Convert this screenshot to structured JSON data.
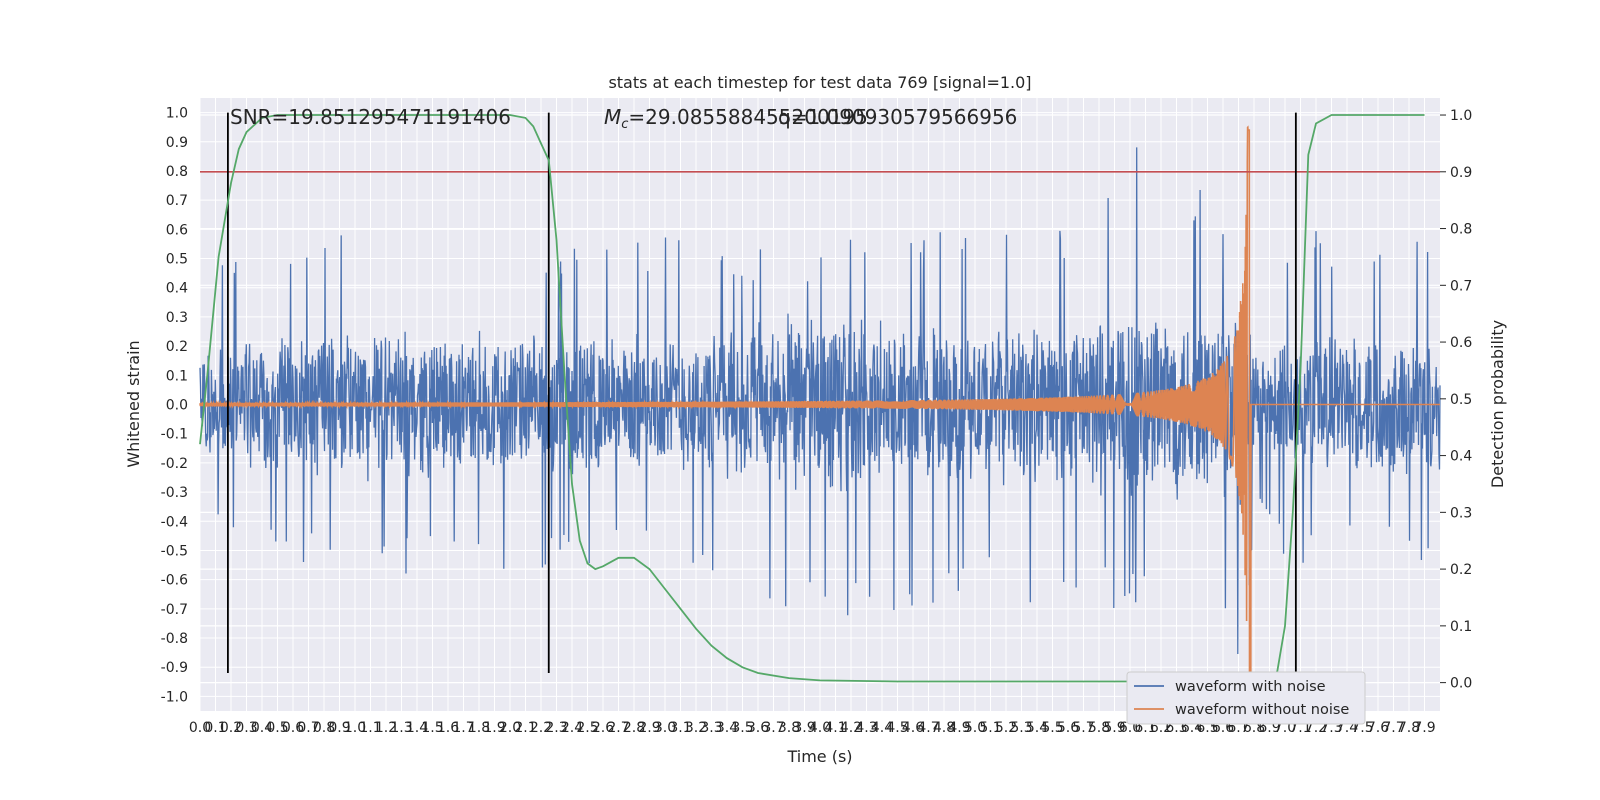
{
  "chart_data": {
    "type": "line",
    "title": "stats at each timestep for test data 769 [signal=1.0]",
    "xlabel": "Time (s)",
    "ylabel": "Whitened strain",
    "y2label": "Detection probability",
    "xlim": [
      0.0,
      8.0
    ],
    "ylim": [
      -1.05,
      1.05
    ],
    "y2lim": [
      -0.05,
      1.03
    ],
    "grid": true,
    "legend_position": "bottom-right",
    "x_ticks": [
      "0.0",
      "0.1",
      "0.2",
      "0.3",
      "0.4",
      "0.5",
      "0.6",
      "0.7",
      "0.8",
      "0.9",
      "1.0",
      "1.1",
      "1.2",
      "1.3",
      "1.4",
      "1.5",
      "1.6",
      "1.7",
      "1.8",
      "1.9",
      "2.0",
      "2.1",
      "2.2",
      "2.3",
      "2.4",
      "2.5",
      "2.6",
      "2.7",
      "2.8",
      "2.9",
      "3.0",
      "3.1",
      "3.2",
      "3.3",
      "3.4",
      "3.5",
      "3.6",
      "3.7",
      "3.8",
      "3.9",
      "4.0",
      "4.1",
      "4.2",
      "4.3",
      "4.4",
      "4.5",
      "4.6",
      "4.7",
      "4.8",
      "4.9",
      "5.0",
      "5.1",
      "5.2",
      "5.3",
      "5.4",
      "5.5",
      "5.6",
      "5.7",
      "5.8",
      "5.9",
      "6.0",
      "6.1",
      "6.2",
      "6.3",
      "6.4",
      "6.5",
      "6.6",
      "6.7",
      "6.8",
      "6.9",
      "7.0",
      "7.1",
      "7.2",
      "7.3",
      "7.4",
      "7.5",
      "7.6",
      "7.7",
      "7.8",
      "7.9"
    ],
    "y_ticks": [
      "1.0",
      "0.9",
      "0.8",
      "0.7",
      "0.6",
      "0.5",
      "0.4",
      "0.3",
      "0.2",
      "0.1",
      "0.0",
      "-0.1",
      "-0.2",
      "-0.3",
      "-0.4",
      "-0.5",
      "-0.6",
      "-0.7",
      "-0.8",
      "-0.9",
      "-1.0"
    ],
    "y2_ticks": [
      "1.0",
      "0.9",
      "0.8",
      "0.7",
      "0.6",
      "0.5",
      "0.4",
      "0.3",
      "0.2",
      "0.1",
      "0.0"
    ],
    "annotations": {
      "snr": "SNR=19.851295471191406",
      "mc_prefix": "M",
      "mc_sub": "c",
      "mc_value": "=29.085588455200195",
      "q": "q=1.090930579566956"
    },
    "series": [
      {
        "name": "waveform with noise",
        "color": "#4c72b0",
        "envelope": {
          "x": [
            0.0,
            1.0,
            2.0,
            3.0,
            4.0,
            5.0,
            5.5,
            6.0,
            6.3,
            6.5,
            6.65,
            6.72,
            6.78,
            6.82,
            7.0,
            8.0
          ],
          "upper": [
            0.48,
            0.64,
            0.6,
            0.59,
            0.55,
            0.63,
            0.62,
            0.91,
            0.83,
            0.78,
            0.76,
            1.0,
            0.62,
            0.35,
            0.6,
            0.6
          ],
          "lower": [
            -0.45,
            -0.6,
            -0.58,
            -0.55,
            -0.8,
            -0.65,
            -0.7,
            -0.72,
            -0.75,
            -0.8,
            -0.9,
            -0.98,
            -0.7,
            -0.4,
            -0.55,
            -0.55
          ]
        }
      },
      {
        "name": "waveform without noise",
        "color": "#dd8452",
        "chirp": {
          "t_merger": 6.78,
          "peak": 0.94,
          "trough": -0.96,
          "amplitude_at_2s": 0.004,
          "amplitude_at_4s": 0.01,
          "amplitude_at_6s": 0.025,
          "amplitude_at_6_5s": 0.085,
          "amplitude_at_6_7s": 0.3
        }
      },
      {
        "name": "detection probability",
        "axis": "right",
        "color": "#55a868",
        "x": [
          0.0,
          0.05,
          0.12,
          0.2,
          0.25,
          0.3,
          0.4,
          0.5,
          0.7,
          1.0,
          1.5,
          2.0,
          2.1,
          2.15,
          2.2,
          2.25,
          2.3,
          2.35,
          2.4,
          2.45,
          2.5,
          2.55,
          2.6,
          2.7,
          2.8,
          2.9,
          3.0,
          3.1,
          3.2,
          3.3,
          3.4,
          3.5,
          3.6,
          3.8,
          4.0,
          4.5,
          5.0,
          6.0,
          6.9,
          6.95,
          7.0,
          7.05,
          7.1,
          7.15,
          7.2,
          7.3,
          7.5,
          7.9
        ],
        "y": [
          0.42,
          0.55,
          0.75,
          0.88,
          0.94,
          0.97,
          0.995,
          1.0,
          1.0,
          1.0,
          1.0,
          1.0,
          0.995,
          0.98,
          0.95,
          0.92,
          0.78,
          0.55,
          0.35,
          0.25,
          0.21,
          0.2,
          0.205,
          0.22,
          0.22,
          0.2,
          0.165,
          0.13,
          0.095,
          0.065,
          0.043,
          0.027,
          0.017,
          0.008,
          0.004,
          0.002,
          0.002,
          0.002,
          0.002,
          0.02,
          0.1,
          0.3,
          0.55,
          0.93,
          0.985,
          1.0,
          1.0,
          1.0
        ]
      }
    ],
    "hlines": [
      {
        "axis": "right",
        "y": 0.9,
        "color": "#c44e52"
      }
    ],
    "vlines": [
      {
        "x": 0.18,
        "y_from": -0.92,
        "y_to": 1.0,
        "color": "#000000"
      },
      {
        "x": 2.25,
        "y_from": -0.92,
        "y_to": 1.0,
        "color": "#000000"
      },
      {
        "x": 7.07,
        "y_from": -0.92,
        "y_to": 1.0,
        "color": "#000000"
      }
    ],
    "legend": [
      "waveform with noise",
      "waveform without noise"
    ]
  }
}
